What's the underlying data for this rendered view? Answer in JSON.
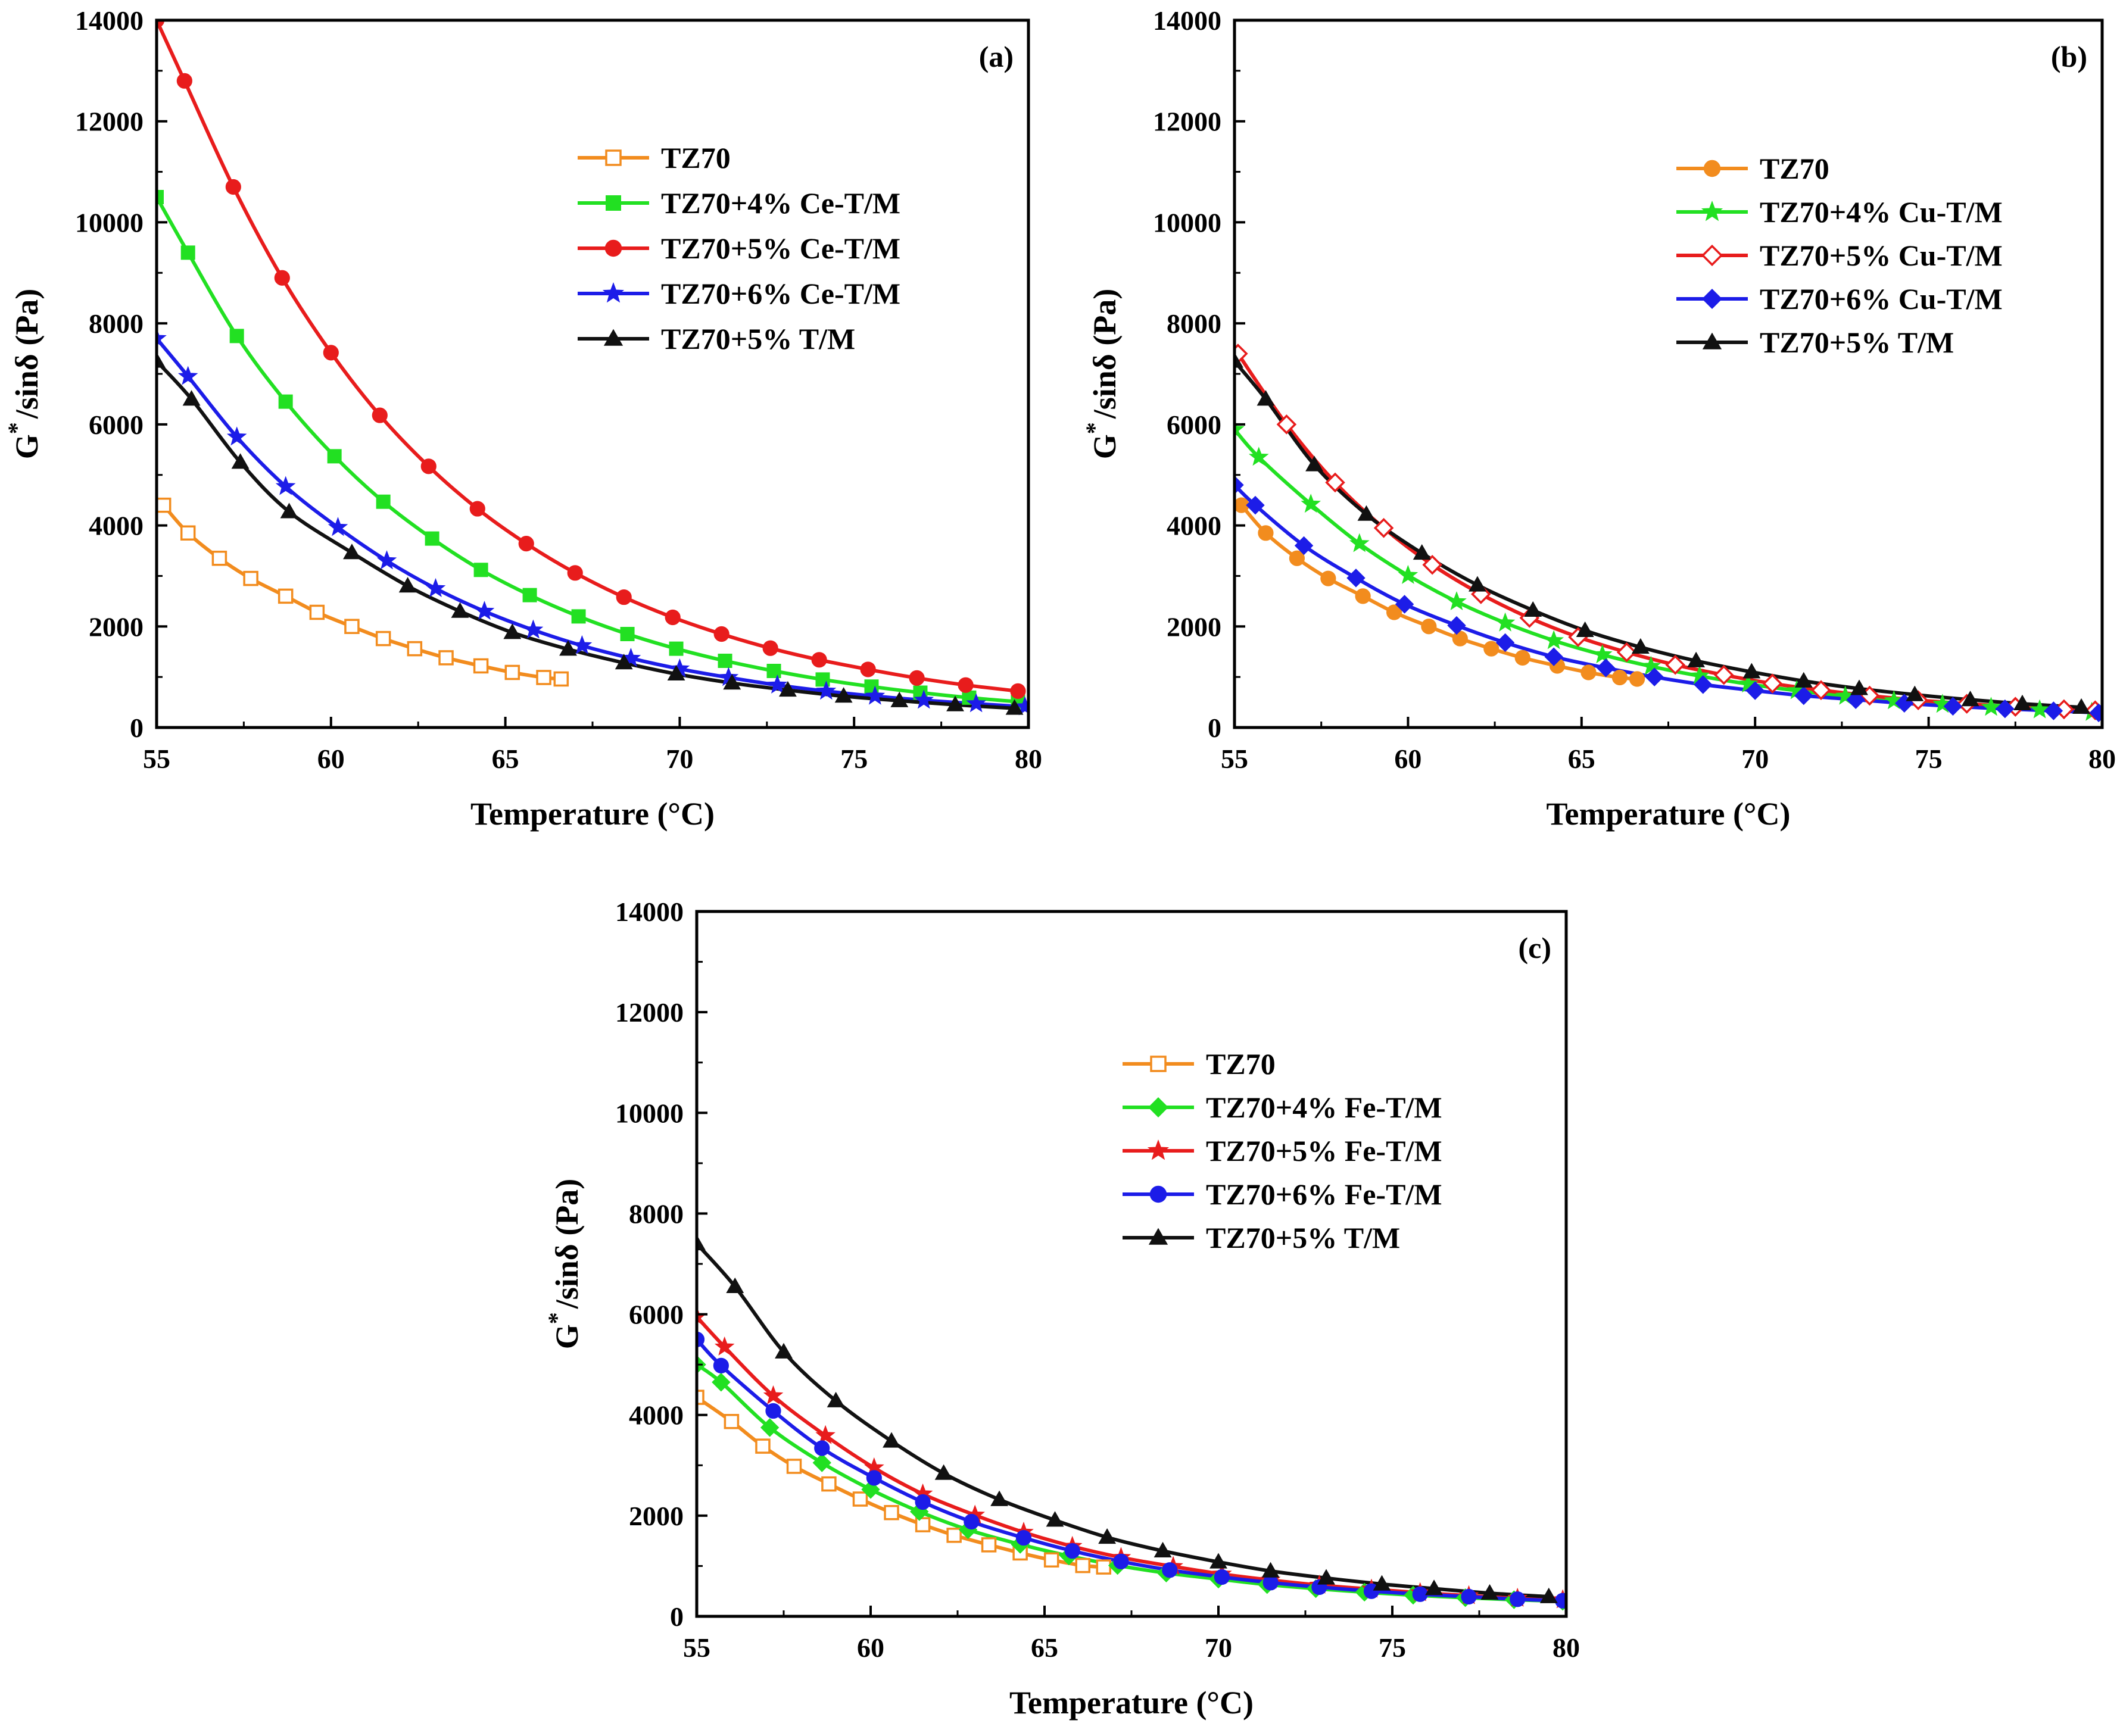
{
  "chart_data": [
    {
      "type": "line",
      "panel_label": "(a)",
      "xlabel": "Temperature (°C)",
      "ylabel_main": "G",
      "ylabel_sup": "*",
      "ylabel_rest": "/sinδ (Pa)",
      "xlim": [
        55,
        80
      ],
      "ylim": [
        0,
        14000
      ],
      "xticks": [
        "55",
        "60",
        "65",
        "70",
        "75",
        "80"
      ],
      "yticks": [
        "0",
        "2000",
        "4000",
        "6000",
        "8000",
        "10000",
        "12000",
        "14000"
      ],
      "legend_position": "upper-right",
      "series": [
        {
          "name": "TZ70",
          "color": "#f28c1e",
          "marker": "square-open",
          "x": [
            55.2,
            55.9,
            56.8,
            57.7,
            58.7,
            59.6,
            60.6,
            61.5,
            62.4,
            63.3,
            64.3,
            65.2,
            66.1,
            66.6
          ],
          "values": [
            4400,
            3850,
            3350,
            2950,
            2600,
            2280,
            2000,
            1760,
            1560,
            1380,
            1220,
            1090,
            990,
            960
          ]
        },
        {
          "name": "TZ70+4% Ce-T/M",
          "color": "#22e022",
          "marker": "square",
          "x": [
            55.0,
            55.9,
            57.3,
            58.7,
            60.1,
            61.5,
            62.9,
            64.3,
            65.7,
            67.1,
            68.5,
            69.9,
            71.3,
            72.7,
            74.1,
            75.5,
            76.9,
            78.3,
            79.7
          ],
          "values": [
            10500,
            9400,
            7750,
            6450,
            5370,
            4470,
            3740,
            3120,
            2620,
            2200,
            1850,
            1560,
            1320,
            1120,
            950,
            810,
            690,
            590,
            510
          ]
        },
        {
          "name": "TZ70+5% Ce-T/M",
          "color": "#e81c1c",
          "marker": "circle",
          "x": [
            55.0,
            55.8,
            57.2,
            58.6,
            60.0,
            61.4,
            62.8,
            64.2,
            65.6,
            67.0,
            68.4,
            69.8,
            71.2,
            72.6,
            74.0,
            75.4,
            76.8,
            78.2,
            79.7
          ],
          "values": [
            14000,
            12800,
            10700,
            8900,
            7420,
            6180,
            5170,
            4330,
            3640,
            3060,
            2580,
            2180,
            1850,
            1570,
            1340,
            1150,
            980,
            840,
            720
          ]
        },
        {
          "name": "TZ70+6% Ce-T/M",
          "color": "#1c1ce8",
          "marker": "star",
          "x": [
            55.0,
            55.9,
            57.3,
            58.7,
            60.2,
            61.6,
            63.0,
            64.4,
            65.8,
            67.2,
            68.6,
            70.0,
            71.4,
            72.8,
            74.2,
            75.6,
            77.0,
            78.5,
            79.9
          ],
          "values": [
            7700,
            6950,
            5750,
            4770,
            3960,
            3300,
            2750,
            2300,
            1930,
            1620,
            1370,
            1160,
            990,
            840,
            720,
            620,
            540,
            470,
            410
          ]
        },
        {
          "name": "TZ70+5% T/M",
          "color": "#111111",
          "marker": "triangle",
          "x": [
            55.0,
            56.0,
            57.4,
            58.8,
            60.6,
            62.2,
            63.7,
            65.2,
            66.8,
            68.4,
            69.9,
            71.5,
            73.1,
            74.7,
            76.3,
            77.9,
            79.6
          ],
          "values": [
            7250,
            6500,
            5250,
            4270,
            3460,
            2800,
            2300,
            1880,
            1550,
            1280,
            1060,
            880,
            740,
            620,
            530,
            450,
            380
          ]
        }
      ]
    },
    {
      "type": "line",
      "panel_label": "(b)",
      "xlabel": "Temperature (°C)",
      "ylabel_main": "G",
      "ylabel_sup": "*",
      "ylabel_rest": "/sinδ (Pa)",
      "xlim": [
        55,
        80
      ],
      "ylim": [
        0,
        14000
      ],
      "xticks": [
        "55",
        "60",
        "65",
        "70",
        "75",
        "80"
      ],
      "yticks": [
        "0",
        "2000",
        "4000",
        "6000",
        "8000",
        "10000",
        "12000",
        "14000"
      ],
      "legend_position": "upper-right",
      "series": [
        {
          "name": "TZ70",
          "color": "#f28c1e",
          "marker": "circle",
          "x": [
            55.2,
            55.9,
            56.8,
            57.7,
            58.7,
            59.6,
            60.6,
            61.5,
            62.4,
            63.3,
            64.3,
            65.2,
            66.1,
            66.6
          ],
          "values": [
            4400,
            3850,
            3350,
            2950,
            2600,
            2280,
            2000,
            1760,
            1560,
            1380,
            1220,
            1090,
            990,
            960
          ]
        },
        {
          "name": "TZ70+4% Cu-T/M",
          "color": "#22e022",
          "marker": "star",
          "x": [
            55.0,
            55.7,
            57.2,
            58.6,
            60.0,
            61.4,
            62.8,
            64.2,
            65.6,
            67.0,
            68.4,
            69.8,
            71.2,
            72.6,
            74.0,
            75.4,
            76.8,
            78.2,
            79.7
          ],
          "values": [
            5900,
            5350,
            4420,
            3640,
            3010,
            2490,
            2070,
            1720,
            1440,
            1210,
            1020,
            860,
            730,
            620,
            530,
            460,
            400,
            350,
            300
          ]
        },
        {
          "name": "TZ70+5% Cu-T/M",
          "color": "#e81c1c",
          "marker": "diamond-open",
          "x": [
            55.1,
            56.5,
            57.9,
            59.3,
            60.7,
            62.1,
            63.5,
            64.9,
            66.3,
            67.7,
            69.1,
            70.5,
            71.9,
            73.3,
            74.7,
            76.1,
            77.5,
            78.9,
            79.8
          ],
          "values": [
            7400,
            6000,
            4850,
            3950,
            3220,
            2640,
            2170,
            1790,
            1490,
            1240,
            1040,
            870,
            740,
            630,
            540,
            470,
            410,
            360,
            340
          ]
        },
        {
          "name": "TZ70+6% Cu-T/M",
          "color": "#1c1ce8",
          "marker": "diamond",
          "x": [
            55.0,
            55.6,
            57.0,
            58.5,
            59.9,
            61.4,
            62.8,
            64.2,
            65.7,
            67.1,
            68.5,
            70.0,
            71.4,
            72.9,
            74.3,
            75.7,
            77.2,
            78.6,
            79.9
          ],
          "values": [
            4800,
            4400,
            3600,
            2960,
            2440,
            2020,
            1680,
            1400,
            1180,
            1000,
            850,
            730,
            630,
            550,
            480,
            420,
            370,
            330,
            290
          ]
        },
        {
          "name": "TZ70+5% T/M",
          "color": "#111111",
          "marker": "triangle",
          "x": [
            55.0,
            55.9,
            57.3,
            58.8,
            60.4,
            62.0,
            63.6,
            65.1,
            66.7,
            68.3,
            69.9,
            71.4,
            73.0,
            74.6,
            76.2,
            77.7,
            79.4
          ],
          "values": [
            7250,
            6500,
            5200,
            4220,
            3450,
            2820,
            2320,
            1920,
            1590,
            1320,
            1100,
            920,
            770,
            650,
            550,
            470,
            400
          ]
        }
      ]
    },
    {
      "type": "line",
      "panel_label": "(c)",
      "xlabel": "Temperature (°C)",
      "ylabel_main": "G",
      "ylabel_sup": "*",
      "ylabel_rest": "/sinδ (Pa)",
      "xlim": [
        55,
        80
      ],
      "ylim": [
        0,
        14000
      ],
      "xticks": [
        "55",
        "60",
        "65",
        "70",
        "75",
        "80"
      ],
      "yticks": [
        "0",
        "2000",
        "4000",
        "6000",
        "8000",
        "10000",
        "12000",
        "14000"
      ],
      "legend_position": "upper-right",
      "series": [
        {
          "name": "TZ70",
          "color": "#f28c1e",
          "marker": "square-open",
          "x": [
            55.0,
            56.0,
            56.9,
            57.8,
            58.8,
            59.7,
            60.6,
            61.5,
            62.4,
            63.4,
            64.3,
            65.2,
            66.1,
            66.7
          ],
          "values": [
            4350,
            3870,
            3380,
            2980,
            2630,
            2330,
            2060,
            1820,
            1610,
            1420,
            1260,
            1120,
            1010,
            980
          ]
        },
        {
          "name": "TZ70+4% Fe-T/M",
          "color": "#22e022",
          "marker": "diamond",
          "x": [
            55.0,
            55.7,
            57.1,
            58.6,
            60.0,
            61.4,
            62.8,
            64.3,
            65.7,
            67.1,
            68.5,
            70.0,
            71.4,
            72.8,
            74.2,
            75.6,
            77.1,
            78.5,
            79.9
          ],
          "values": [
            5000,
            4650,
            3750,
            3050,
            2520,
            2080,
            1720,
            1430,
            1200,
            1010,
            860,
            740,
            630,
            550,
            480,
            420,
            370,
            330,
            300
          ]
        },
        {
          "name": "TZ70+5% Fe-T/M",
          "color": "#e81c1c",
          "marker": "star",
          "x": [
            55.0,
            55.8,
            57.2,
            58.7,
            60.1,
            61.5,
            63.0,
            64.4,
            65.8,
            67.2,
            68.7,
            70.1,
            71.5,
            72.9,
            74.4,
            75.8,
            77.2,
            78.6,
            79.9
          ],
          "values": [
            5950,
            5350,
            4380,
            3590,
            2950,
            2430,
            2010,
            1670,
            1390,
            1170,
            990,
            840,
            720,
            620,
            540,
            470,
            410,
            360,
            330
          ]
        },
        {
          "name": "TZ70+6% Fe-T/M",
          "color": "#1c1ce8",
          "marker": "circle",
          "x": [
            55.0,
            55.7,
            57.2,
            58.6,
            60.1,
            61.5,
            62.9,
            64.4,
            65.8,
            67.2,
            68.6,
            70.1,
            71.5,
            72.9,
            74.4,
            75.8,
            77.2,
            78.6,
            79.9
          ],
          "values": [
            5500,
            4980,
            4080,
            3340,
            2750,
            2270,
            1880,
            1560,
            1300,
            1090,
            920,
            780,
            670,
            580,
            500,
            440,
            390,
            340,
            310
          ]
        },
        {
          "name": "TZ70+5% T/M",
          "color": "#111111",
          "marker": "triangle",
          "x": [
            55.0,
            56.1,
            57.5,
            59.0,
            60.6,
            62.1,
            63.7,
            65.3,
            66.8,
            68.4,
            70.0,
            71.5,
            73.1,
            74.7,
            76.2,
            77.8,
            79.5
          ],
          "values": [
            7400,
            6550,
            5250,
            4280,
            3480,
            2840,
            2320,
            1910,
            1570,
            1300,
            1080,
            900,
            760,
            640,
            550,
            460,
            390
          ]
        }
      ]
    }
  ]
}
